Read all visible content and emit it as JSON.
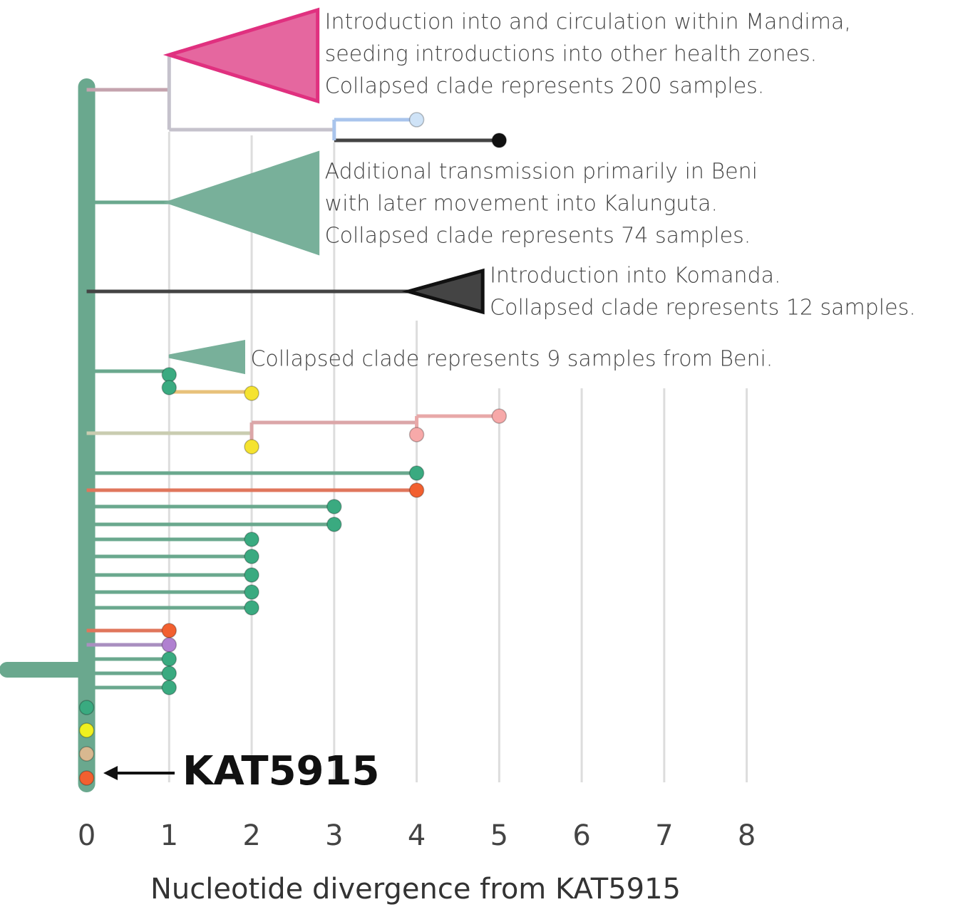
{
  "chart_data": {
    "type": "tree",
    "x_label": "Nucleotide divergence from KAT5915",
    "reference": "KAT5915",
    "xlim": [
      -1.05,
      10.5
    ],
    "xticks": [
      0,
      1,
      2,
      3,
      4,
      5,
      6,
      7,
      8
    ],
    "grid": true,
    "spine_color": "#6aa88e",
    "segments": [
      {
        "from": 0,
        "to": 1,
        "color": "#c4a3ae"
      },
      {
        "from": 1,
        "to": 3,
        "color": "#c5c2cc"
      },
      {
        "from": 3,
        "to": 4,
        "color": "#a9c4ec"
      },
      {
        "from": 3,
        "to": 5,
        "color": "#444444"
      },
      {
        "from": 0,
        "to": 1,
        "color": "#6aa88e"
      },
      {
        "from": 0,
        "to": 4,
        "color": "#444444"
      },
      {
        "from": 0,
        "to": 1,
        "color": "#6aa88e"
      },
      {
        "from": 1,
        "to": 2,
        "color": "#e8c27a"
      },
      {
        "from": 0,
        "to": 2,
        "color": "#c9ccb0"
      },
      {
        "from": 2,
        "to": 4,
        "color": "#dba6a8"
      },
      {
        "from": 4,
        "to": 5,
        "color": "#e8a8a8"
      },
      {
        "from": 0,
        "to": 4,
        "color": "#6aa88e"
      },
      {
        "from": 0,
        "to": 4,
        "color": "#e0765c"
      },
      {
        "from": 0,
        "to": 3,
        "color": "#6aa88e"
      },
      {
        "from": 0,
        "to": 3,
        "color": "#6aa88e"
      },
      {
        "from": 0,
        "to": 2,
        "color": "#6aa88e"
      },
      {
        "from": 0,
        "to": 2,
        "color": "#6aa88e"
      },
      {
        "from": 0,
        "to": 2,
        "color": "#6aa88e"
      },
      {
        "from": 0,
        "to": 2,
        "color": "#6aa88e"
      },
      {
        "from": 0,
        "to": 2,
        "color": "#6aa88e"
      },
      {
        "from": 0,
        "to": 1,
        "color": "#e0765c"
      },
      {
        "from": 0,
        "to": 1,
        "color": "#a98fc0"
      },
      {
        "from": 0,
        "to": 1,
        "color": "#6aa88e"
      },
      {
        "from": 0,
        "to": 1,
        "color": "#6aa88e"
      },
      {
        "from": 0,
        "to": 1,
        "color": "#6aa88e"
      }
    ],
    "tips": [
      {
        "x": 4,
        "color": "#cfe3f7"
      },
      {
        "x": 5,
        "color": "#111111"
      },
      {
        "x": 1,
        "color": "#3aaa80"
      },
      {
        "x": 1,
        "color": "#3aaa80"
      },
      {
        "x": 2,
        "color": "#f5e330"
      },
      {
        "x": 2,
        "color": "#f5e330"
      },
      {
        "x": 4,
        "color": "#f7a9a9"
      },
      {
        "x": 5,
        "color": "#f7a9a9"
      },
      {
        "x": 4,
        "color": "#3aaa80"
      },
      {
        "x": 4,
        "color": "#f26030"
      },
      {
        "x": 3,
        "color": "#3aaa80"
      },
      {
        "x": 3,
        "color": "#3aaa80"
      },
      {
        "x": 2,
        "color": "#3aaa80"
      },
      {
        "x": 2,
        "color": "#3aaa80"
      },
      {
        "x": 2,
        "color": "#3aaa80"
      },
      {
        "x": 2,
        "color": "#3aaa80"
      },
      {
        "x": 2,
        "color": "#3aaa80"
      },
      {
        "x": 1,
        "color": "#f26030"
      },
      {
        "x": 1,
        "color": "#b080d0"
      },
      {
        "x": 1,
        "color": "#3aaa80"
      },
      {
        "x": 1,
        "color": "#3aaa80"
      },
      {
        "x": 1,
        "color": "#3aaa80"
      },
      {
        "x": 0,
        "color": "#3aaa80"
      },
      {
        "x": 0,
        "color": "#f0f020"
      },
      {
        "x": 0,
        "color": "#d8b890"
      },
      {
        "x": 0,
        "color": "#f26030"
      }
    ],
    "clades": [
      {
        "from": 1,
        "to": 2.8,
        "fill": "#e5679f",
        "stroke": "#e0307f",
        "label": [
          "Introduction into and circulation within Mandima,",
          "seeding introductions into other health zones.",
          "Collapsed clade represents 200 samples."
        ]
      },
      {
        "from": 1,
        "to": 2.8,
        "fill": "#78b09a",
        "stroke": "#78b09a",
        "label": [
          "Additional transmission primarily in Beni",
          "with later movement into Kalunguta.",
          "Collapsed clade represents 74 samples."
        ]
      },
      {
        "from": 3.9,
        "to": 4.8,
        "fill": "#444444",
        "stroke": "#111111",
        "label": [
          "Introduction into Komanda.",
          "Collapsed clade represents 12 samples."
        ]
      },
      {
        "from": 1,
        "to": 1.9,
        "fill": "#78b09a",
        "stroke": "#78b09a",
        "label": [
          "Collapsed clade represents 9 samples from Beni."
        ]
      }
    ]
  }
}
